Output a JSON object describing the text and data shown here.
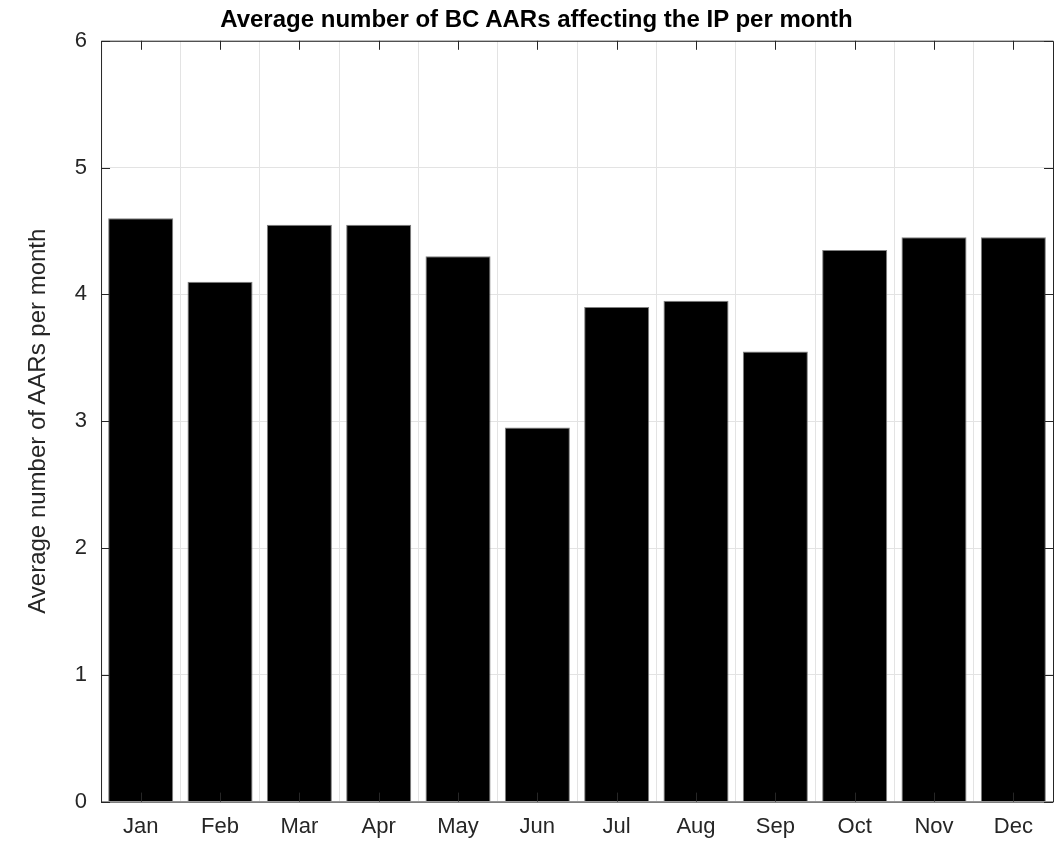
{
  "chart_data": {
    "type": "bar",
    "title": "Average number of BC AARs affecting the IP per month",
    "ylabel": "Average number of AARs per month",
    "categories": [
      "Jan",
      "Feb",
      "Mar",
      "Apr",
      "May",
      "Jun",
      "Jul",
      "Aug",
      "Sep",
      "Oct",
      "Nov",
      "Dec"
    ],
    "values": [
      4.6,
      4.1,
      4.55,
      4.55,
      4.3,
      2.95,
      3.9,
      3.95,
      3.55,
      4.35,
      4.45,
      4.45
    ],
    "color": "#000000",
    "ylim": [
      0,
      6
    ],
    "yticks": [
      0,
      1,
      2,
      3,
      4,
      5,
      6
    ],
    "grid": true
  }
}
